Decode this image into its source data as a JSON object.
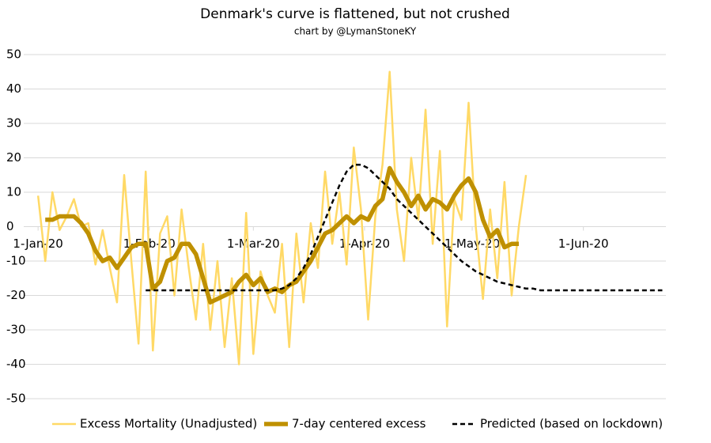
{
  "chart_data": {
    "type": "line",
    "title": "Denmark's curve is flattened, but not crushed",
    "subtitle": "chart by @LymanStoneKY",
    "x": [
      "2020-01-01",
      "2020-01-03",
      "2020-01-05",
      "2020-01-07",
      "2020-01-09",
      "2020-01-11",
      "2020-01-13",
      "2020-01-15",
      "2020-01-17",
      "2020-01-19",
      "2020-01-21",
      "2020-01-23",
      "2020-01-25",
      "2020-01-27",
      "2020-01-29",
      "2020-01-31",
      "2020-02-02",
      "2020-02-04",
      "2020-02-06",
      "2020-02-08",
      "2020-02-10",
      "2020-02-12",
      "2020-02-14",
      "2020-02-16",
      "2020-02-18",
      "2020-02-20",
      "2020-02-22",
      "2020-02-24",
      "2020-02-26",
      "2020-02-28",
      "2020-03-01",
      "2020-03-03",
      "2020-03-05",
      "2020-03-07",
      "2020-03-09",
      "2020-03-11",
      "2020-03-13",
      "2020-03-15",
      "2020-03-17",
      "2020-03-19",
      "2020-03-21",
      "2020-03-23",
      "2020-03-25",
      "2020-03-27",
      "2020-03-29",
      "2020-03-31",
      "2020-04-02",
      "2020-04-04",
      "2020-04-06",
      "2020-04-08",
      "2020-04-10",
      "2020-04-12",
      "2020-04-14",
      "2020-04-16",
      "2020-04-18",
      "2020-04-20",
      "2020-04-22",
      "2020-04-24",
      "2020-04-26",
      "2020-04-28",
      "2020-04-30",
      "2020-05-02",
      "2020-05-04",
      "2020-05-06",
      "2020-05-08",
      "2020-05-10",
      "2020-05-12",
      "2020-05-14",
      "2020-05-16",
      "2020-05-18",
      "2020-05-20",
      "2020-05-22",
      "2020-05-24",
      "2020-05-26",
      "2020-05-28",
      "2020-05-30",
      "2020-06-01",
      "2020-06-03",
      "2020-06-05",
      "2020-06-07",
      "2020-06-09",
      "2020-06-11",
      "2020-06-13",
      "2020-06-15",
      "2020-06-17",
      "2020-06-19",
      "2020-06-21",
      "2020-06-23"
    ],
    "series": [
      {
        "name": "Excess Mortality (Unadjusted)",
        "color": "#ffd966",
        "width": 2.5,
        "dash": false,
        "values": [
          9,
          -10,
          10,
          -1,
          3,
          8,
          0,
          1,
          -11,
          -1,
          -12,
          -22,
          15,
          -10,
          -34,
          16,
          -36,
          -2,
          3,
          -20,
          5,
          -12,
          -27,
          -5,
          -30,
          -10,
          -35,
          -15,
          -40,
          4,
          -37,
          -13,
          -20,
          -25,
          -5,
          -35,
          -2,
          -22,
          1,
          -12,
          16,
          -5,
          10,
          -11,
          23,
          5,
          -27,
          3,
          18,
          45,
          5,
          -10,
          20,
          2,
          34,
          -5,
          22,
          -29,
          8,
          2,
          36,
          0,
          -21,
          5,
          -15,
          13,
          -20,
          0,
          15,
          null,
          null,
          null,
          null,
          null,
          null,
          null,
          null,
          null,
          null,
          null,
          null,
          null,
          null,
          null,
          null,
          null,
          null,
          null
        ]
      },
      {
        "name": "7-day centered excess",
        "color": "#bf9000",
        "width": 5.5,
        "dash": false,
        "values": [
          null,
          2,
          2,
          3,
          3,
          3,
          1,
          -2,
          -7,
          -10,
          -9,
          -12,
          -9,
          -6,
          -5,
          -5,
          -18,
          -16,
          -10,
          -9,
          -5,
          -5,
          -8,
          -15,
          -22,
          -21,
          -20,
          -19,
          -16,
          -14,
          -17,
          -15,
          -19,
          -18,
          -19,
          -17,
          -16,
          -13,
          -10,
          -6,
          -2,
          -1,
          1,
          3,
          1,
          3,
          2,
          6,
          8,
          17,
          13,
          10,
          6,
          9,
          5,
          8,
          7,
          5,
          9,
          12,
          14,
          10,
          2,
          -3,
          -1,
          -6,
          -5,
          -5,
          null,
          null,
          null,
          null,
          null,
          null,
          null,
          null,
          null,
          null,
          null,
          null,
          null,
          null,
          null,
          null,
          null,
          null,
          null,
          null
        ]
      },
      {
        "name": "Predicted (based on lockdown)",
        "color": "#000000",
        "width": 2.5,
        "dash": true,
        "values": [
          null,
          null,
          null,
          null,
          null,
          null,
          null,
          null,
          null,
          null,
          null,
          null,
          null,
          null,
          null,
          -18.5,
          -18.5,
          -18.5,
          -18.5,
          -18.5,
          -18.5,
          -18.5,
          -18.5,
          -18.5,
          -18.5,
          -18.5,
          -18.5,
          -18.5,
          -18.5,
          -18.5,
          -18.5,
          -18.5,
          -18.5,
          -18.5,
          -18,
          -17,
          -15,
          -12,
          -8,
          -3,
          2,
          7,
          12,
          16,
          18,
          18,
          17,
          15,
          13,
          11,
          8,
          6,
          4,
          2,
          0,
          -2,
          -4,
          -6,
          -8,
          -10,
          -11.5,
          -13,
          -14,
          -15,
          -16,
          -16.5,
          -17,
          -17.5,
          -18,
          -18,
          -18.5,
          -18.5,
          -18.5,
          -18.5,
          -18.5,
          -18.5,
          -18.5,
          -18.5,
          -18.5,
          -18.5,
          -18.5,
          -18.5,
          -18.5,
          -18.5,
          -18.5,
          -18.5,
          -18.5,
          -18.5
        ]
      }
    ],
    "xlim": [
      "2019-12-28",
      "2020-06-24"
    ],
    "xticks": [
      {
        "value": "2020-01-01",
        "label": "1-Jan-20"
      },
      {
        "value": "2020-02-01",
        "label": "1-Feb-20"
      },
      {
        "value": "2020-03-01",
        "label": "1-Mar-20"
      },
      {
        "value": "2020-04-01",
        "label": "1-Apr-20"
      },
      {
        "value": "2020-05-01",
        "label": "1-May-20"
      },
      {
        "value": "2020-06-01",
        "label": "1-Jun-20"
      }
    ],
    "ylim": [
      -50,
      50
    ],
    "yticks": [
      -50,
      -40,
      -30,
      -20,
      -10,
      0,
      10,
      20,
      30,
      40,
      50
    ],
    "grid": true,
    "legend": "bottom"
  }
}
